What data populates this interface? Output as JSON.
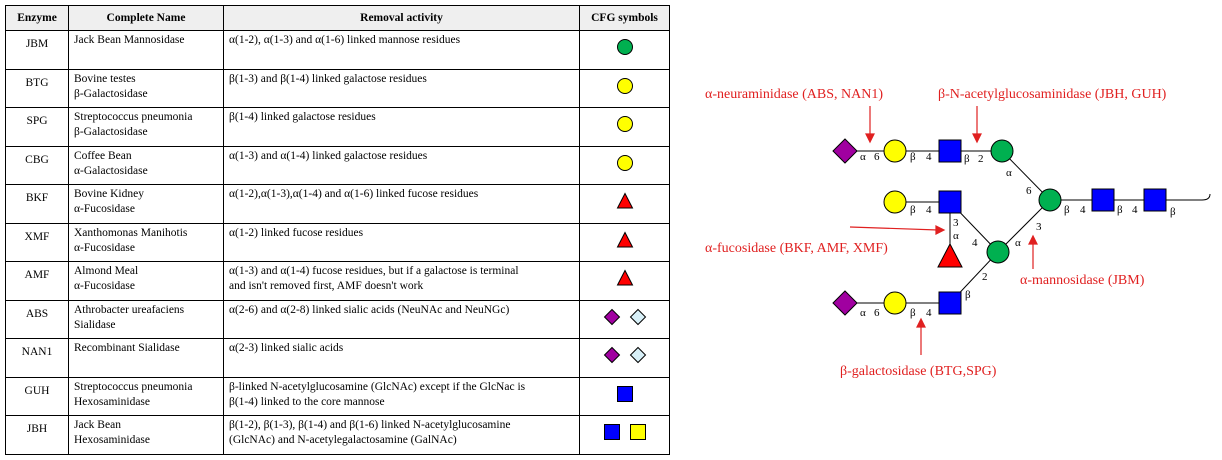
{
  "table": {
    "headers": [
      "Enzyme",
      "Complete Name",
      "Removal activity",
      "CFG symbols"
    ],
    "rows": [
      {
        "enzyme": "JBM",
        "name": [
          "Jack Bean Mannosidase"
        ],
        "activity": [
          "α(1-2), α(1-3) and α(1-6) linked mannose residues"
        ],
        "symbols": [
          "green-circle"
        ]
      },
      {
        "enzyme": "BTG",
        "name": [
          "Bovine testes",
          "β-Galactosidase"
        ],
        "activity": [
          "β(1-3) and β(1-4) linked galactose residues"
        ],
        "symbols": [
          "yellow-circle"
        ]
      },
      {
        "enzyme": "SPG",
        "name": [
          "Streptococcus pneumonia",
          "β-Galactosidase"
        ],
        "activity": [
          "β(1-4) linked galactose residues"
        ],
        "symbols": [
          "yellow-circle"
        ]
      },
      {
        "enzyme": "CBG",
        "name": [
          "Coffee Bean",
          "α-Galactosidase"
        ],
        "activity": [
          "α(1-3) and α(1-4) linked galactose residues"
        ],
        "symbols": [
          "yellow-circle"
        ]
      },
      {
        "enzyme": "BKF",
        "name": [
          "Bovine Kidney",
          "α-Fucosidase"
        ],
        "activity": [
          "α(1-2),α(1-3),α(1-4) and α(1-6) linked fucose residues"
        ],
        "symbols": [
          "red-triangle"
        ]
      },
      {
        "enzyme": "XMF",
        "name": [
          "Xanthomonas Manihotis",
          "α-Fucosidase"
        ],
        "activity": [
          "α(1-2) linked fucose residues"
        ],
        "symbols": [
          "red-triangle"
        ]
      },
      {
        "enzyme": "AMF",
        "name": [
          "Almond Meal",
          "α-Fucosidase"
        ],
        "activity": [
          "α(1-3) and α(1-4) fucose residues, but if a galactose is terminal",
          "and isn't removed first, AMF doesn't work"
        ],
        "symbols": [
          "red-triangle"
        ]
      },
      {
        "enzyme": "ABS",
        "name": [
          "Athrobacter ureafaciens",
          "Sialidase"
        ],
        "activity": [
          "α(2-6) and α(2-8) linked sialic acids (NeuNAc and NeuNGc)"
        ],
        "symbols": [
          "purple-diamond",
          "light-blue-diamond"
        ]
      },
      {
        "enzyme": "NAN1",
        "name": [
          "Recombinant Sialidase"
        ],
        "activity": [
          "α(2-3) linked sialic  acids"
        ],
        "symbols": [
          "purple-diamond",
          "light-blue-diamond"
        ]
      },
      {
        "enzyme": "GUH",
        "name": [
          "Streptococcus pneumonia",
          "Hexosaminidase"
        ],
        "activity": [
          "β-linked N-acetylglucosamine (GlcNAc)  except if the GlcNac is",
          "β(1-4) linked to the core mannose"
        ],
        "symbols": [
          "blue-square"
        ]
      },
      {
        "enzyme": "JBH",
        "name": [
          "Jack Bean",
          "Hexosaminidase"
        ],
        "activity": [
          "β(1-2), β(1-3),  β(1-4) and β(1-6) linked N-acetylglucosamine",
          "(GlcNAc)  and N-acetylegalactosamine (GalNAc)"
        ],
        "symbols": [
          "blue-square",
          "yellow-square"
        ]
      }
    ]
  },
  "diagram": {
    "annotations": {
      "neuraminidase": "α-neuraminidase (ABS, NAN1)",
      "acetylglucosaminidase": "β-N-acetylglucosaminidase (JBH, GUH)",
      "fucosidase": "α-fucosidase (BKF, AMF, XMF)",
      "mannosidase": "α-mannosidase (JBM)",
      "galactosidase": "β-galactosidase (BTG,SPG)"
    },
    "linkage_labels": {
      "top_sia": "α",
      "top_sia_pos": "6",
      "top_gal": "β",
      "top_gal_pos": "4",
      "top_glcnac": "β",
      "top_glcnac_pos": "2",
      "top_man": "α",
      "top_man_pos": "6",
      "mid_gal": "β",
      "mid_gal_pos": "4",
      "mid_glcnac_pos": "3",
      "mid_glcnac_anomer": "α",
      "mid_glcnac_link_pos": "4",
      "bot_man": "α",
      "bot_man_pos": "3",
      "bot_glcnac_pos": "2",
      "bot_glcnac": "β",
      "bot_sia": "α",
      "bot_sia_pos": "6",
      "bot_gal": "β",
      "bot_gal_pos": "4",
      "core_1": "β",
      "core_1_pos": "4",
      "core_2": "β",
      "core_2_pos": "4",
      "core_3": "β"
    },
    "colors": {
      "annotation": "#e02020",
      "mannose": "#00b050",
      "galactose": "#ffff00",
      "glcnac": "#0000ff",
      "fucose": "#ff0000",
      "sialic": "#a000a0",
      "sialic_ngc": "#d8f0f8"
    }
  }
}
